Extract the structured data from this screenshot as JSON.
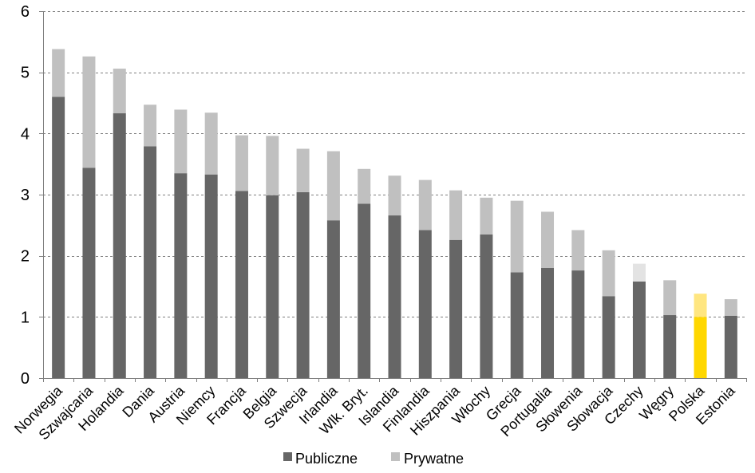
{
  "chart_data": {
    "type": "bar",
    "stacked": true,
    "categories": [
      "Norwegia",
      "Szwajcaria",
      "Holandia",
      "Dania",
      "Austria",
      "Niemcy",
      "Francja",
      "Belgia",
      "Szwecja",
      "Irlandia",
      "Wlk. Bryt.",
      "Islandia",
      "Finlandia",
      "Hiszpania",
      "Włochy",
      "Grecja",
      "Portugalia",
      "Słowenia",
      "Słowacja",
      "Czechy",
      "Węgry",
      "Polska",
      "Estonia"
    ],
    "series": [
      {
        "name": "Publiczne",
        "color": "#666666",
        "values": [
          4.6,
          3.44,
          4.33,
          3.79,
          3.35,
          3.33,
          3.06,
          2.99,
          3.04,
          2.58,
          2.85,
          2.66,
          2.42,
          2.26,
          2.35,
          1.73,
          1.8,
          1.76,
          1.34,
          1.58,
          1.03,
          1.0,
          1.02
        ]
      },
      {
        "name": "Prywatne",
        "color": "#c0c0c0",
        "values": [
          0.78,
          1.82,
          0.73,
          0.68,
          1.04,
          1.01,
          0.91,
          0.97,
          0.71,
          1.13,
          0.57,
          0.65,
          0.82,
          0.81,
          0.6,
          1.17,
          0.92,
          0.66,
          0.75,
          0.29,
          0.57,
          0.38,
          0.27
        ]
      }
    ],
    "highlight": {
      "category": "Polska",
      "colors": [
        "#ffd700",
        "#ffe680"
      ]
    },
    "faded": {
      "category": "Czechy",
      "colors": [
        "#666666",
        "#e3e3e3"
      ]
    },
    "ylim": [
      0,
      6
    ],
    "yticks": [
      "0",
      "1",
      "2",
      "3",
      "4",
      "5",
      "6"
    ],
    "grid": true,
    "legend_position": "bottom"
  }
}
